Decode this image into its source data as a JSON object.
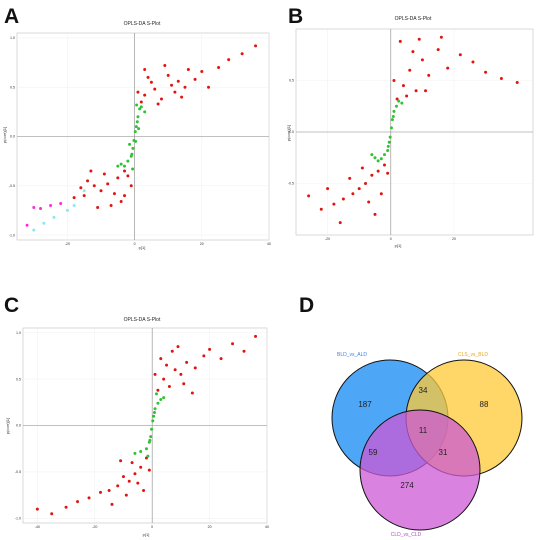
{
  "panels": {
    "A": {
      "letter": "A"
    },
    "B": {
      "letter": "B"
    },
    "C": {
      "letter": "C"
    },
    "D": {
      "letter": "D"
    }
  },
  "colors": {
    "red": "#e0150f",
    "green": "#2fc232",
    "pink": "#ff2ad8",
    "cyan": "#8ce8ef",
    "venn_blue": "#3b9cf5",
    "venn_yellow": "#ffc936",
    "venn_purple": "#cc58d4",
    "label_blue": "#3d7fe0",
    "label_yellow": "#e6a81e",
    "label_purple": "#b44ec4"
  },
  "chart_data": [
    {
      "id": "A",
      "type": "scatter",
      "title": "OPLS-DA S-Plot",
      "xlabel": "p[1]",
      "ylabel": "p(corr)[1]",
      "xlim": [
        -35,
        40
      ],
      "ylim": [
        -1.05,
        1.05
      ],
      "xticks": [
        "-20",
        "0",
        "20",
        "40"
      ],
      "xtick_values": [
        -20,
        0,
        20,
        40
      ],
      "yticks": [
        "1.0",
        "0.5",
        "0.0",
        "-0.5",
        "-1.0"
      ],
      "ytick_values": [
        1.0,
        0.5,
        0.0,
        -0.5,
        -1.0
      ],
      "series": [
        {
          "color": "red",
          "points": [
            [
              3,
              0.42
            ],
            [
              5,
              0.55
            ],
            [
              8,
              0.38
            ],
            [
              10,
              0.62
            ],
            [
              12,
              0.45
            ],
            [
              15,
              0.5
            ],
            [
              18,
              0.58
            ],
            [
              20,
              0.66
            ],
            [
              25,
              0.7
            ],
            [
              28,
              0.78
            ],
            [
              32,
              0.84
            ],
            [
              36,
              0.92
            ],
            [
              2,
              0.35
            ],
            [
              6,
              0.48
            ],
            [
              9,
              0.72
            ],
            [
              14,
              0.4
            ],
            [
              4,
              0.6
            ],
            [
              7,
              0.33
            ],
            [
              11,
              0.52
            ],
            [
              16,
              0.68
            ],
            [
              22,
              0.5
            ],
            [
              1,
              0.45
            ],
            [
              3,
              0.68
            ],
            [
              13,
              0.56
            ],
            [
              -3,
              -0.35
            ],
            [
              -5,
              -0.42
            ],
            [
              -8,
              -0.48
            ],
            [
              -10,
              -0.55
            ],
            [
              -12,
              -0.5
            ],
            [
              -15,
              -0.6
            ],
            [
              -18,
              -0.62
            ],
            [
              -2,
              -0.4
            ],
            [
              -6,
              -0.58
            ],
            [
              -9,
              -0.38
            ],
            [
              -14,
              -0.45
            ],
            [
              -4,
              -0.66
            ],
            [
              -7,
              -0.7
            ],
            [
              -11,
              -0.72
            ],
            [
              -16,
              -0.52
            ],
            [
              -1,
              -0.5
            ],
            [
              -3,
              -0.6
            ],
            [
              -13,
              -0.35
            ]
          ]
        },
        {
          "color": "green",
          "points": [
            [
              0.5,
              0.1
            ],
            [
              1,
              0.2
            ],
            [
              0.3,
              -0.05
            ],
            [
              -0.5,
              -0.12
            ],
            [
              -1,
              -0.2
            ],
            [
              -2,
              -0.25
            ],
            [
              -3,
              -0.3
            ],
            [
              1.5,
              0.28
            ],
            [
              2,
              0.3
            ],
            [
              0.2,
              0.05
            ],
            [
              -0.2,
              -0.04
            ],
            [
              -4,
              -0.28
            ],
            [
              -5,
              -0.3
            ],
            [
              3,
              0.25
            ],
            [
              0.8,
              0.15
            ],
            [
              -0.8,
              -0.18
            ],
            [
              1.2,
              0.08
            ],
            [
              -1.5,
              -0.08
            ],
            [
              0.6,
              0.32
            ],
            [
              -0.6,
              -0.33
            ]
          ]
        },
        {
          "color": "pink",
          "points": [
            [
              -30,
              -0.72
            ],
            [
              -28,
              -0.73
            ],
            [
              -25,
              -0.7
            ],
            [
              -32,
              -0.9
            ],
            [
              -22,
              -0.68
            ]
          ]
        },
        {
          "color": "cyan",
          "points": [
            [
              -20,
              -0.75
            ],
            [
              -24,
              -0.82
            ],
            [
              -27,
              -0.88
            ],
            [
              -18,
              -0.7
            ],
            [
              -30,
              -0.95
            ],
            [
              -15,
              -0.55
            ]
          ]
        }
      ]
    },
    {
      "id": "B",
      "type": "scatter",
      "title": "OPLS-DA S-Plot",
      "xlabel": "p[1]",
      "ylabel": "p(corr)[1]",
      "xlim": [
        -30,
        45
      ],
      "ylim": [
        -1.0,
        1.0
      ],
      "xticks": [
        "-20",
        "0",
        "20"
      ],
      "xtick_values": [
        -20,
        0,
        20
      ],
      "yticks": [
        "0.5",
        "0.0",
        "-0.5"
      ],
      "ytick_values": [
        0.5,
        0.0,
        -0.5
      ],
      "series": [
        {
          "color": "red",
          "points": [
            [
              2,
              0.32
            ],
            [
              4,
              0.45
            ],
            [
              6,
              0.6
            ],
            [
              8,
              0.4
            ],
            [
              10,
              0.7
            ],
            [
              12,
              0.55
            ],
            [
              15,
              0.8
            ],
            [
              18,
              0.62
            ],
            [
              22,
              0.75
            ],
            [
              26,
              0.68
            ],
            [
              30,
              0.58
            ],
            [
              35,
              0.52
            ],
            [
              40,
              0.48
            ],
            [
              3,
              0.88
            ],
            [
              9,
              0.9
            ],
            [
              16,
              0.92
            ],
            [
              5,
              0.35
            ],
            [
              11,
              0.4
            ],
            [
              1,
              0.5
            ],
            [
              7,
              0.78
            ],
            [
              -2,
              -0.32
            ],
            [
              -4,
              -0.38
            ],
            [
              -6,
              -0.42
            ],
            [
              -8,
              -0.5
            ],
            [
              -10,
              -0.55
            ],
            [
              -12,
              -0.6
            ],
            [
              -15,
              -0.65
            ],
            [
              -18,
              -0.7
            ],
            [
              -22,
              -0.75
            ],
            [
              -3,
              -0.6
            ],
            [
              -5,
              -0.8
            ],
            [
              -9,
              -0.35
            ],
            [
              -13,
              -0.45
            ],
            [
              -20,
              -0.55
            ],
            [
              -26,
              -0.62
            ],
            [
              -1,
              -0.4
            ],
            [
              -7,
              -0.68
            ],
            [
              -16,
              -0.88
            ]
          ]
        },
        {
          "color": "green",
          "points": [
            [
              0.5,
              0.12
            ],
            [
              1,
              0.2
            ],
            [
              1.8,
              0.25
            ],
            [
              -0.5,
              -0.1
            ],
            [
              -1,
              -0.18
            ],
            [
              -2,
              -0.22
            ],
            [
              -3,
              -0.26
            ],
            [
              -4,
              -0.28
            ],
            [
              2.5,
              0.3
            ],
            [
              0.2,
              0.04
            ],
            [
              -0.2,
              -0.05
            ],
            [
              -5,
              -0.25
            ],
            [
              -6,
              -0.22
            ],
            [
              3.5,
              0.28
            ],
            [
              0.8,
              0.15
            ],
            [
              -0.8,
              -0.14
            ]
          ]
        }
      ]
    },
    {
      "id": "C",
      "type": "scatter",
      "title": "OPLS-DA S-Plot",
      "xlabel": "p[1]",
      "ylabel": "p(corr)[1]",
      "xlim": [
        -45,
        40
      ],
      "ylim": [
        -1.05,
        1.05
      ],
      "xticks": [
        "-40",
        "-20",
        "0",
        "20",
        "40"
      ],
      "xtick_values": [
        -40,
        -20,
        0,
        20,
        40
      ],
      "yticks": [
        "1.0",
        "0.5",
        "0.0",
        "-0.5",
        "-1.0"
      ],
      "ytick_values": [
        1.0,
        0.5,
        0.0,
        -0.5,
        -1.0
      ],
      "series": [
        {
          "color": "red",
          "points": [
            [
              2,
              0.38
            ],
            [
              4,
              0.5
            ],
            [
              6,
              0.42
            ],
            [
              8,
              0.6
            ],
            [
              10,
              0.55
            ],
            [
              12,
              0.68
            ],
            [
              15,
              0.62
            ],
            [
              18,
              0.75
            ],
            [
              20,
              0.82
            ],
            [
              24,
              0.72
            ],
            [
              28,
              0.88
            ],
            [
              32,
              0.8
            ],
            [
              36,
              0.96
            ],
            [
              3,
              0.72
            ],
            [
              7,
              0.8
            ],
            [
              11,
              0.45
            ],
            [
              14,
              0.35
            ],
            [
              5,
              0.65
            ],
            [
              9,
              0.85
            ],
            [
              1,
              0.55
            ],
            [
              -2,
              -0.35
            ],
            [
              -4,
              -0.45
            ],
            [
              -6,
              -0.52
            ],
            [
              -8,
              -0.6
            ],
            [
              -10,
              -0.55
            ],
            [
              -12,
              -0.65
            ],
            [
              -15,
              -0.7
            ],
            [
              -18,
              -0.72
            ],
            [
              -22,
              -0.78
            ],
            [
              -26,
              -0.82
            ],
            [
              -30,
              -0.88
            ],
            [
              -35,
              -0.95
            ],
            [
              -40,
              -0.9
            ],
            [
              -3,
              -0.7
            ],
            [
              -7,
              -0.4
            ],
            [
              -11,
              -0.38
            ],
            [
              -14,
              -0.85
            ],
            [
              -1,
              -0.48
            ],
            [
              -5,
              -0.62
            ],
            [
              -9,
              -0.75
            ]
          ]
        },
        {
          "color": "green",
          "points": [
            [
              0.5,
              0.1
            ],
            [
              1,
              0.18
            ],
            [
              2,
              0.24
            ],
            [
              3,
              0.28
            ],
            [
              -0.5,
              -0.12
            ],
            [
              -1,
              -0.18
            ],
            [
              -2,
              -0.25
            ],
            [
              -4,
              -0.28
            ],
            [
              -6,
              -0.3
            ],
            [
              0.2,
              0.05
            ],
            [
              -0.2,
              -0.04
            ],
            [
              4,
              0.3
            ],
            [
              1.5,
              0.34
            ],
            [
              -1.5,
              -0.33
            ],
            [
              0.8,
              0.14
            ],
            [
              -0.8,
              -0.16
            ]
          ]
        }
      ]
    },
    {
      "id": "D",
      "type": "venn",
      "sets": [
        {
          "name": "BLD_vs_ALD",
          "color": "venn_blue"
        },
        {
          "name": "CLS_vs_BLD",
          "color": "venn_yellow"
        },
        {
          "name": "CLD_vs_CLD",
          "color": "venn_purple"
        }
      ],
      "regions": {
        "only_1": "187",
        "only_2": "88",
        "only_3": "274",
        "r12": "34",
        "r13": "59",
        "r23": "31",
        "r123": "11"
      }
    }
  ]
}
